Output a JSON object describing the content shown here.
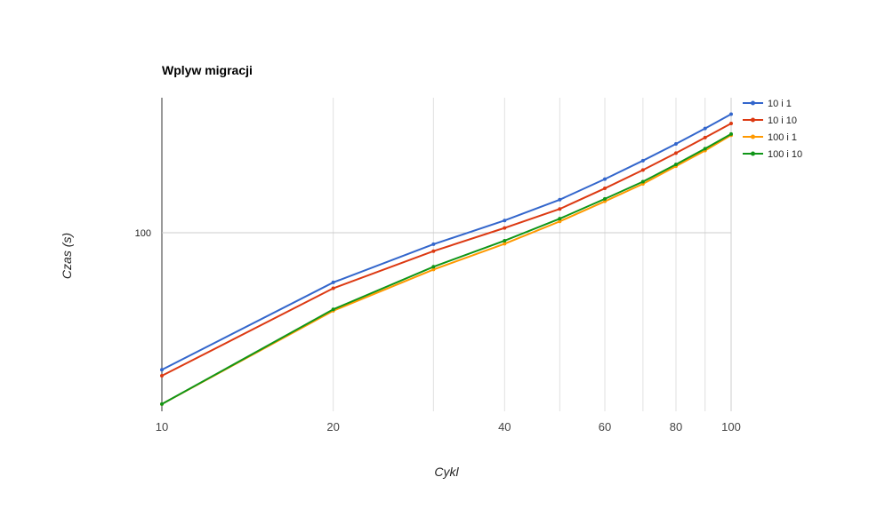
{
  "chart_data": {
    "type": "line",
    "title": "Wplyw migracji",
    "xlabel": "Cykl",
    "ylabel": "Czas (s)",
    "x_scale": "log",
    "y_scale": "log",
    "xlim": [
      10,
      100
    ],
    "ylim": [
      40,
      200
    ],
    "x_ticks": [
      10,
      20,
      40,
      60,
      80,
      100
    ],
    "x_gridlines": [
      10,
      20,
      30,
      40,
      50,
      60,
      70,
      80,
      90,
      100
    ],
    "y_ticks": [
      100
    ],
    "legend_position": "right",
    "x": [
      10,
      20,
      30,
      40,
      50,
      60,
      70,
      80,
      90,
      100
    ],
    "series": [
      {
        "name": "10 i 1",
        "color": "#3366cc",
        "values": [
          49.5,
          77.5,
          94.3,
          106.5,
          118.5,
          131.7,
          144.8,
          157.8,
          170.8,
          183.8
        ]
      },
      {
        "name": "10 i 10",
        "color": "#dc3912",
        "values": [
          48,
          75.2,
          91,
          102.5,
          113,
          125.6,
          138,
          150.5,
          163,
          175.2
        ]
      },
      {
        "name": "100 i 1",
        "color": "#ff9900",
        "values": [
          41.5,
          67,
          82.8,
          94.5,
          106,
          117.5,
          128.5,
          140.7,
          152.5,
          165
        ]
      },
      {
        "name": "100 i 10",
        "color": "#109618",
        "values": [
          41.5,
          67.5,
          84,
          96,
          107.5,
          119,
          130,
          142,
          154,
          166
        ]
      }
    ]
  }
}
